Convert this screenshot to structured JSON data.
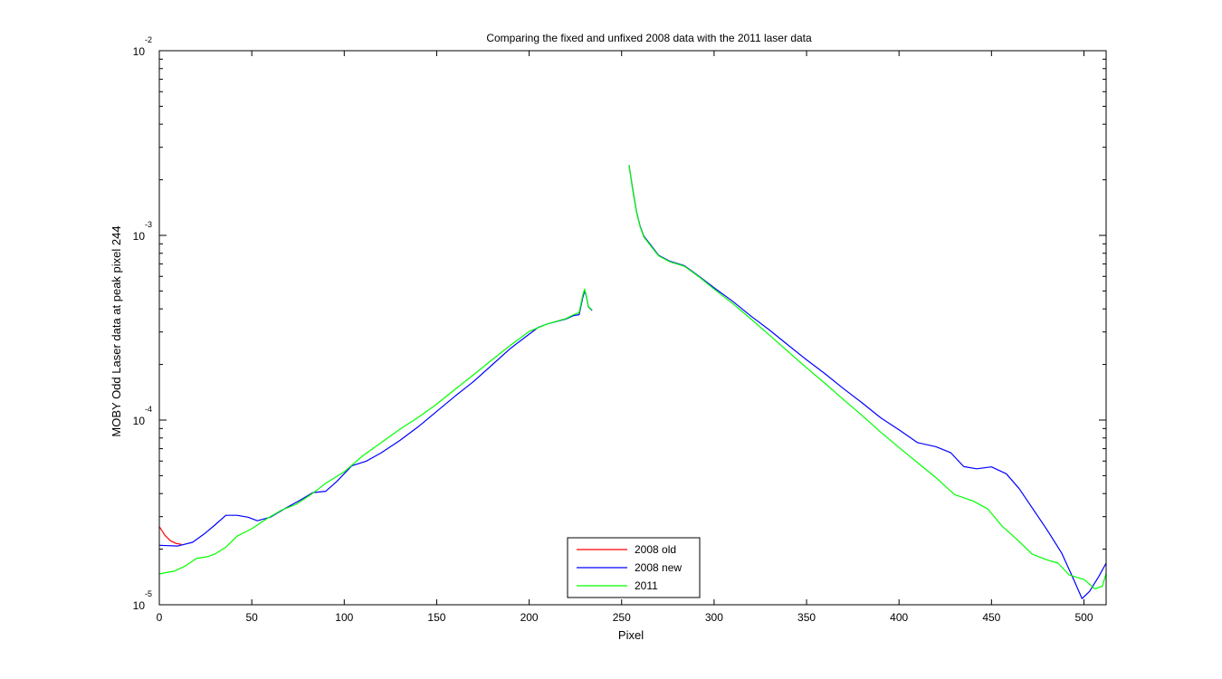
{
  "chart_data": {
    "type": "line",
    "title": "Comparing the fixed and unfixed 2008 data with the 2011 laser data",
    "xlabel": "Pixel",
    "ylabel": "MOBY Odd Laser data at peak pixel 244",
    "xlim": [
      0,
      512
    ],
    "ylim": [
      1e-05,
      0.01
    ],
    "yscale": "log",
    "grid": false,
    "legend_location": "bottom-center",
    "x_ticks": [
      0,
      50,
      100,
      150,
      200,
      250,
      300,
      350,
      400,
      450,
      500
    ],
    "x_tick_labels": [
      "0",
      "50",
      "100",
      "150",
      "200",
      "250",
      "300",
      "350",
      "400",
      "450",
      "500"
    ],
    "y_ticks": [
      {
        "value": 0.01,
        "base": "10",
        "exponent": "-2"
      },
      {
        "value": 0.001,
        "base": "10",
        "exponent": "-3"
      },
      {
        "value": 0.0001,
        "base": "10",
        "exponent": "-4"
      },
      {
        "value": 1e-05,
        "base": "10",
        "exponent": "-5"
      }
    ],
    "series": [
      {
        "name": "2008 old",
        "color": "#ff0000",
        "segments": [
          [
            [
              0,
              2.65e-05
            ],
            [
              3,
              2.38e-05
            ],
            [
              6,
              2.22e-05
            ],
            [
              9,
              2.15e-05
            ],
            [
              12,
              2.12e-05
            ]
          ]
        ]
      },
      {
        "name": "2008 new",
        "color": "#0000ff",
        "segments": [
          [
            [
              0,
              2.1e-05
            ],
            [
              10,
              2.08e-05
            ],
            [
              18,
              2.18e-05
            ],
            [
              25,
              2.45e-05
            ],
            [
              30,
              2.7e-05
            ],
            [
              36,
              3.05e-05
            ],
            [
              42,
              3.05e-05
            ],
            [
              48,
              2.98e-05
            ],
            [
              53,
              2.85e-05
            ],
            [
              60,
              2.98e-05
            ],
            [
              68,
              3.32e-05
            ],
            [
              76,
              3.68e-05
            ],
            [
              83,
              4.05e-05
            ],
            [
              90,
              4.12e-05
            ],
            [
              96,
              4.65e-05
            ],
            [
              104,
              5.65e-05
            ],
            [
              112,
              6e-05
            ],
            [
              120,
              6.65e-05
            ],
            [
              130,
              7.75e-05
            ],
            [
              140,
              9.2e-05
            ],
            [
              150,
              0.0001115
            ],
            [
              160,
              0.000135
            ],
            [
              170,
              0.000162
            ],
            [
              180,
              0.000199
            ],
            [
              190,
              0.000245
            ],
            [
              200,
              0.000292
            ],
            [
              205,
              0.000318
            ],
            [
              210,
              0.000332
            ],
            [
              215,
              0.000342
            ],
            [
              220,
              0.000353
            ],
            [
              224,
              0.000368
            ],
            [
              227,
              0.000372
            ],
            [
              229,
              0.00046
            ],
            [
              230,
              0.000502
            ],
            [
              231,
              0.000465
            ],
            [
              232,
              0.00041
            ],
            [
              234,
              0.000392
            ]
          ],
          [
            [
              254,
              0.0024
            ],
            [
              256,
              0.00178
            ],
            [
              258,
              0.00135
            ],
            [
              260,
              0.00112
            ],
            [
              262,
              0.00099
            ],
            [
              266,
              0.00088
            ],
            [
              270,
              0.00078
            ],
            [
              276,
              0.000725
            ],
            [
              284,
              0.000684
            ],
            [
              292,
              0.0006
            ],
            [
              300,
              0.00052
            ],
            [
              310,
              0.00044
            ],
            [
              320,
              0.000365
            ],
            [
              330,
              0.000307
            ],
            [
              340,
              0.000255
            ],
            [
              350,
              0.000212
            ],
            [
              360,
              0.000178
            ],
            [
              370,
              0.000148
            ],
            [
              380,
              0.000124
            ],
            [
              390,
              0.000103
            ],
            [
              400,
              8.85e-05
            ],
            [
              410,
              7.55e-05
            ],
            [
              420,
              7.18e-05
            ],
            [
              428,
              6.65e-05
            ],
            [
              435,
              5.6e-05
            ],
            [
              442,
              5.45e-05
            ],
            [
              450,
              5.58e-05
            ],
            [
              458,
              5.12e-05
            ],
            [
              465,
              4.25e-05
            ],
            [
              472,
              3.35e-05
            ],
            [
              480,
              2.55e-05
            ],
            [
              488,
              1.9e-05
            ],
            [
              495,
              1.33e-05
            ],
            [
              499,
              1.08e-05
            ],
            [
              503,
              1.18e-05
            ],
            [
              508,
              1.42e-05
            ],
            [
              512,
              1.68e-05
            ]
          ]
        ]
      },
      {
        "name": "2011",
        "color": "#00ff00",
        "segments": [
          [
            [
              0,
              1.47e-05
            ],
            [
              8,
              1.52e-05
            ],
            [
              14,
              1.62e-05
            ],
            [
              20,
              1.78e-05
            ],
            [
              26,
              1.82e-05
            ],
            [
              30,
              1.88e-05
            ],
            [
              36,
              2.05e-05
            ],
            [
              42,
              2.35e-05
            ],
            [
              50,
              2.58e-05
            ],
            [
              58,
              2.92e-05
            ],
            [
              66,
              3.25e-05
            ],
            [
              74,
              3.5e-05
            ],
            [
              82,
              3.95e-05
            ],
            [
              90,
              4.55e-05
            ],
            [
              100,
              5.25e-05
            ],
            [
              110,
              6.4e-05
            ],
            [
              120,
              7.55e-05
            ],
            [
              130,
              8.9e-05
            ],
            [
              140,
              0.0001035
            ],
            [
              150,
              0.000122
            ],
            [
              160,
              0.000147
            ],
            [
              170,
              0.000176
            ],
            [
              180,
              0.000212
            ],
            [
              190,
              0.000255
            ],
            [
              200,
              0.000302
            ],
            [
              210,
              0.000332
            ],
            [
              220,
              0.000355
            ],
            [
              224,
              0.000372
            ],
            [
              227,
              0.000382
            ],
            [
              229,
              0.000475
            ],
            [
              230,
              0.000512
            ],
            [
              231,
              0.000468
            ],
            [
              232,
              0.000412
            ],
            [
              234,
              0.000395
            ]
          ],
          [
            [
              254,
              0.0024
            ],
            [
              256,
              0.00176
            ],
            [
              258,
              0.00134
            ],
            [
              260,
              0.00111
            ],
            [
              262,
              0.00098
            ],
            [
              266,
              0.00087
            ],
            [
              270,
              0.000775
            ],
            [
              276,
              0.00072
            ],
            [
              284,
              0.00068
            ],
            [
              292,
              0.000595
            ],
            [
              300,
              0.000512
            ],
            [
              310,
              0.000428
            ],
            [
              320,
              0.000352
            ],
            [
              330,
              0.000288
            ],
            [
              340,
              0.000235
            ],
            [
              350,
              0.000192
            ],
            [
              360,
              0.000158
            ],
            [
              370,
              0.000129
            ],
            [
              380,
              0.000106
            ],
            [
              390,
              8.62e-05
            ],
            [
              400,
              7.1e-05
            ],
            [
              410,
              5.88e-05
            ],
            [
              420,
              4.88e-05
            ],
            [
              430,
              3.95e-05
            ],
            [
              440,
              3.65e-05
            ],
            [
              448,
              3.3e-05
            ],
            [
              456,
              2.65e-05
            ],
            [
              464,
              2.25e-05
            ],
            [
              472,
              1.88e-05
            ],
            [
              480,
              1.75e-05
            ],
            [
              486,
              1.68e-05
            ],
            [
              492,
              1.45e-05
            ],
            [
              500,
              1.37e-05
            ],
            [
              506,
              1.22e-05
            ],
            [
              510,
              1.26e-05
            ],
            [
              512,
              1.48e-05
            ]
          ]
        ]
      }
    ]
  }
}
